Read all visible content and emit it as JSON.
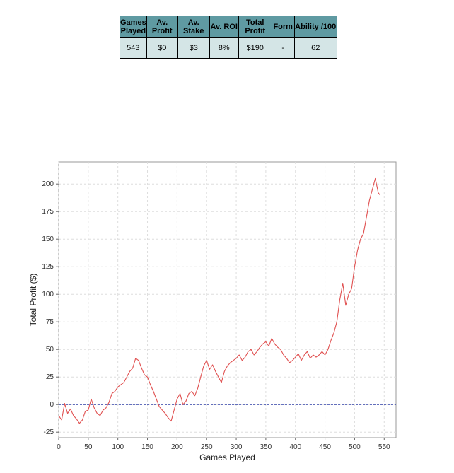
{
  "stats_table": {
    "headers": [
      "Games Played",
      "Av. Profit",
      "Av. Stake",
      "Av. ROI",
      "Total Profit",
      "Form",
      "Ability /100"
    ],
    "values": [
      "543",
      "$0",
      "$3",
      "8%",
      "$190",
      "-",
      "62"
    ]
  },
  "chart_data": {
    "type": "line",
    "xlabel": "Games Played",
    "ylabel": "Total Profit ($)",
    "xlim": [
      0,
      570
    ],
    "ylim": [
      -30,
      220
    ],
    "xticks": [
      0,
      50,
      100,
      150,
      200,
      250,
      300,
      350,
      400,
      450,
      500,
      550
    ],
    "yticks": [
      -25,
      0,
      25,
      50,
      75,
      100,
      125,
      150,
      175,
      200
    ],
    "grid": true,
    "zero_line": true,
    "colors": {
      "line": "#e05050",
      "zero_line": "#3344aa",
      "grid": "#dddddd"
    },
    "series": [
      {
        "x": [
          0,
          5,
          10,
          15,
          20,
          25,
          30,
          35,
          40,
          45,
          50,
          55,
          60,
          65,
          70,
          75,
          80,
          85,
          90,
          95,
          100,
          105,
          110,
          115,
          120,
          125,
          130,
          135,
          140,
          145,
          150,
          155,
          160,
          165,
          170,
          175,
          180,
          185,
          190,
          195,
          200,
          205,
          210,
          215,
          220,
          225,
          230,
          235,
          240,
          245,
          250,
          255,
          260,
          265,
          270,
          275,
          280,
          285,
          290,
          295,
          300,
          305,
          310,
          315,
          320,
          325,
          330,
          335,
          340,
          345,
          350,
          355,
          360,
          365,
          370,
          375,
          380,
          385,
          390,
          395,
          400,
          405,
          410,
          415,
          420,
          425,
          430,
          435,
          440,
          445,
          450,
          455,
          460,
          465,
          470,
          475,
          480,
          485,
          490,
          495,
          500,
          505,
          510,
          515,
          520,
          525,
          530,
          535,
          540,
          543
        ],
        "y": [
          -10,
          -14,
          1,
          -8,
          -4,
          -10,
          -13,
          -17,
          -14,
          -6,
          -5,
          5,
          -3,
          -8,
          -10,
          -5,
          -3,
          2,
          10,
          12,
          16,
          18,
          20,
          25,
          30,
          33,
          42,
          40,
          33,
          27,
          25,
          18,
          12,
          5,
          -2,
          -5,
          -8,
          -12,
          -15,
          -5,
          5,
          10,
          0,
          3,
          10,
          12,
          8,
          15,
          25,
          35,
          40,
          32,
          36,
          30,
          25,
          20,
          30,
          35,
          38,
          40,
          42,
          45,
          40,
          43,
          48,
          50,
          45,
          48,
          52,
          55,
          57,
          53,
          60,
          55,
          52,
          50,
          45,
          42,
          38,
          40,
          43,
          46,
          40,
          45,
          48,
          42,
          45,
          43,
          45,
          48,
          45,
          50,
          58,
          65,
          75,
          95,
          110,
          90,
          100,
          105,
          125,
          140,
          150,
          155,
          170,
          185,
          195,
          205,
          192,
          190
        ]
      }
    ]
  }
}
